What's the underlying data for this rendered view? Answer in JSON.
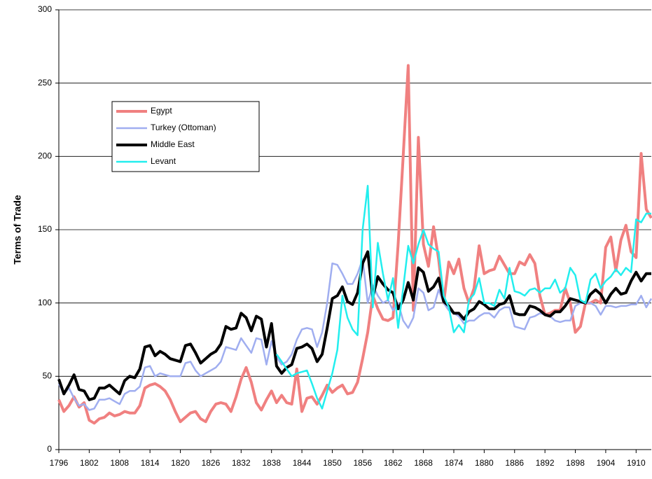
{
  "chart_data": {
    "type": "line",
    "y_label": "Terms of Trade",
    "x": [
      1796,
      1797,
      1798,
      1799,
      1800,
      1801,
      1802,
      1803,
      1804,
      1805,
      1806,
      1807,
      1808,
      1809,
      1810,
      1811,
      1812,
      1813,
      1814,
      1815,
      1816,
      1817,
      1818,
      1819,
      1820,
      1821,
      1822,
      1823,
      1824,
      1825,
      1826,
      1827,
      1828,
      1829,
      1830,
      1831,
      1832,
      1833,
      1834,
      1835,
      1836,
      1837,
      1838,
      1839,
      1840,
      1841,
      1842,
      1843,
      1844,
      1845,
      1846,
      1847,
      1848,
      1849,
      1850,
      1851,
      1852,
      1853,
      1854,
      1855,
      1856,
      1857,
      1858,
      1859,
      1860,
      1861,
      1862,
      1863,
      1864,
      1865,
      1866,
      1867,
      1868,
      1869,
      1870,
      1871,
      1872,
      1873,
      1874,
      1875,
      1876,
      1877,
      1878,
      1879,
      1880,
      1881,
      1882,
      1883,
      1884,
      1885,
      1886,
      1887,
      1888,
      1889,
      1890,
      1891,
      1892,
      1893,
      1894,
      1895,
      1896,
      1897,
      1898,
      1899,
      1900,
      1901,
      1902,
      1903,
      1904,
      1905,
      1906,
      1907,
      1908,
      1909,
      1910,
      1911,
      1912,
      1913
    ],
    "xlim": [
      1796,
      1913
    ],
    "xticks": [
      1796,
      1802,
      1808,
      1814,
      1820,
      1826,
      1832,
      1838,
      1844,
      1850,
      1856,
      1862,
      1868,
      1874,
      1880,
      1886,
      1892,
      1898,
      1904,
      1910
    ],
    "ylim": [
      0,
      300
    ],
    "yticks": [
      0,
      50,
      100,
      150,
      200,
      250,
      300
    ],
    "grid": true,
    "legend": "upper-left",
    "series": [
      {
        "name": "Egypt",
        "color": "#f08080",
        "width": 4,
        "values": [
          34,
          26,
          30,
          36,
          29,
          32,
          20,
          18,
          21,
          22,
          25,
          23,
          24,
          26,
          25,
          25,
          30,
          42,
          44,
          45,
          43,
          40,
          34,
          26,
          19,
          22,
          25,
          26,
          21,
          19,
          26,
          31,
          32,
          31,
          26,
          36,
          48,
          56,
          46,
          32,
          27,
          34,
          40,
          32,
          37,
          32,
          31,
          55,
          26,
          35,
          36,
          31,
          37,
          44,
          39,
          42,
          44,
          38,
          39,
          46,
          62,
          80,
          105,
          96,
          89,
          88,
          90,
          140,
          200,
          262,
          95,
          213,
          140,
          125,
          152,
          130,
          100,
          128,
          120,
          130,
          110,
          100,
          110,
          139,
          120,
          122,
          123,
          132,
          126,
          120,
          120,
          128,
          126,
          133,
          127,
          105,
          92,
          93,
          95,
          95,
          110,
          100,
          80,
          84,
          100,
          100,
          102,
          100,
          138,
          145,
          122,
          143,
          153,
          135,
          131,
          202,
          164,
          158
        ]
      },
      {
        "name": "Turkey (Ottoman)",
        "color": "#a0aef0",
        "width": 2.5,
        "values": [
          45,
          38,
          42,
          35,
          30,
          31,
          27,
          28,
          34,
          34,
          35,
          33,
          31,
          38,
          40,
          40,
          43,
          56,
          57,
          50,
          52,
          51,
          50,
          50,
          50,
          59,
          60,
          54,
          50,
          52,
          54,
          56,
          60,
          70,
          69,
          68,
          76,
          71,
          66,
          76,
          75,
          58,
          74,
          63,
          58,
          60,
          65,
          75,
          82,
          83,
          82,
          70,
          80,
          100,
          127,
          126,
          120,
          113,
          113,
          120,
          130,
          100,
          112,
          105,
          100,
          102,
          95,
          100,
          88,
          83,
          90,
          110,
          107,
          95,
          97,
          109,
          100,
          95,
          93,
          91,
          86,
          88,
          88,
          91,
          93,
          93,
          90,
          95,
          97,
          97,
          84,
          83,
          82,
          90,
          91,
          93,
          92,
          91,
          88,
          87,
          88,
          88,
          98,
          100,
          100,
          100,
          98,
          92,
          98,
          98,
          97,
          98,
          98,
          99,
          99,
          105,
          97,
          103
        ]
      },
      {
        "name": "Middle East",
        "color": "#000000",
        "width": 4,
        "values": [
          48,
          38,
          44,
          51,
          41,
          40,
          34,
          35,
          42,
          42,
          44,
          41,
          38,
          47,
          50,
          49,
          55,
          70,
          71,
          64,
          67,
          65,
          62,
          61,
          60,
          71,
          72,
          66,
          59,
          62,
          65,
          67,
          72,
          84,
          82,
          83,
          93,
          90,
          81,
          91,
          89,
          70,
          86,
          57,
          52,
          56,
          58,
          69,
          70,
          72,
          69,
          60,
          65,
          83,
          103,
          105,
          111,
          101,
          99,
          107,
          127,
          135,
          104,
          118,
          113,
          109,
          107,
          96,
          102,
          114,
          102,
          124,
          121,
          108,
          111,
          117,
          101,
          98,
          93,
          93,
          89,
          94,
          96,
          101,
          99,
          96,
          96,
          99,
          100,
          105,
          93,
          92,
          92,
          98,
          97,
          95,
          92,
          91,
          94,
          94,
          98,
          103,
          102,
          101,
          100,
          106,
          109,
          106,
          100,
          106,
          110,
          106,
          107,
          115,
          121,
          115,
          120,
          120
        ]
      },
      {
        "name": "Levant",
        "color": "#22eeee",
        "width": 2.5,
        "values": [
          null,
          null,
          null,
          null,
          null,
          null,
          null,
          null,
          null,
          null,
          null,
          null,
          null,
          null,
          null,
          null,
          null,
          null,
          null,
          null,
          null,
          null,
          null,
          null,
          null,
          null,
          null,
          null,
          null,
          null,
          null,
          null,
          null,
          null,
          null,
          null,
          null,
          null,
          null,
          null,
          null,
          null,
          null,
          65,
          60,
          55,
          50,
          52,
          53,
          54,
          45,
          35,
          28,
          40,
          52,
          68,
          105,
          90,
          82,
          78,
          150,
          180,
          97,
          141,
          120,
          102,
          117,
          83,
          110,
          139,
          127,
          140,
          150,
          140,
          137,
          135,
          105,
          97,
          80,
          85,
          80,
          102,
          106,
          117,
          100,
          100,
          98,
          109,
          103,
          124,
          108,
          107,
          105,
          109,
          110,
          107,
          110,
          110,
          116,
          107,
          110,
          124,
          119,
          102,
          100,
          116,
          120,
          110,
          115,
          118,
          123,
          119,
          124,
          121,
          157,
          155,
          161,
          161
        ]
      }
    ]
  }
}
